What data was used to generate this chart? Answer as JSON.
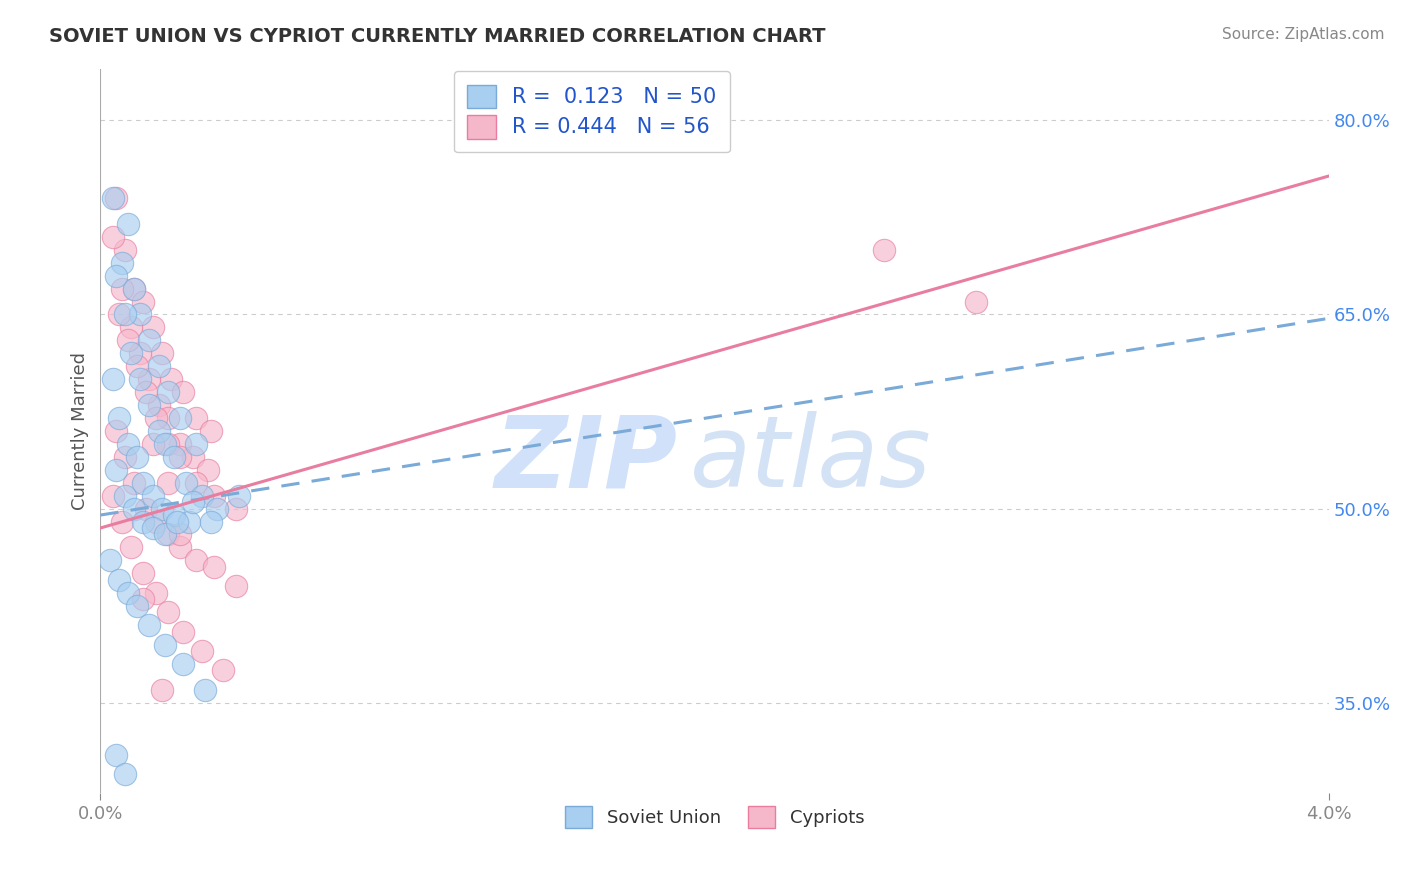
{
  "title": "SOVIET UNION VS CYPRIOT CURRENTLY MARRIED CORRELATION CHART",
  "source": "Source: ZipAtlas.com",
  "ylabel": "Currently Married",
  "xlim": [
    0.0,
    4.0
  ],
  "ylim": [
    28.0,
    84.0
  ],
  "x_ticks": [
    0.0,
    4.0
  ],
  "x_tick_labels": [
    "0.0%",
    "4.0%"
  ],
  "y_ticks_right": [
    35.0,
    50.0,
    65.0,
    80.0
  ],
  "y_tick_labels_right": [
    "35.0%",
    "50.0%",
    "65.0%",
    "80.0%"
  ],
  "grid_color": "#cccccc",
  "background_color": "#ffffff",
  "blue_color": "#A8CEF0",
  "pink_color": "#F5B8CB",
  "blue_edge_color": "#7AAAD8",
  "pink_edge_color": "#E87DA0",
  "blue_line_color": "#7AAAD8",
  "pink_line_color": "#E87DA0",
  "legend_label1": "Soviet Union",
  "legend_label2": "Cypriots",
  "r_blue": 0.123,
  "n_blue": 50,
  "r_pink": 0.444,
  "n_pink": 56,
  "watermark_zip": "ZIP",
  "watermark_atlas": "atlas",
  "blue_intercept": 49.5,
  "blue_slope": 3.8,
  "pink_intercept": 48.5,
  "pink_slope": 6.8,
  "blue_scatter_x": [
    0.04,
    0.07,
    0.09,
    0.11,
    0.13,
    0.16,
    0.19,
    0.22,
    0.26,
    0.31,
    0.05,
    0.08,
    0.1,
    0.13,
    0.16,
    0.19,
    0.21,
    0.24,
    0.28,
    0.33,
    0.04,
    0.06,
    0.09,
    0.12,
    0.14,
    0.17,
    0.2,
    0.24,
    0.29,
    0.38,
    0.05,
    0.08,
    0.11,
    0.14,
    0.17,
    0.21,
    0.25,
    0.3,
    0.36,
    0.45,
    0.03,
    0.06,
    0.09,
    0.12,
    0.16,
    0.21,
    0.27,
    0.34,
    0.05,
    0.08
  ],
  "blue_scatter_y": [
    74.0,
    69.0,
    72.0,
    67.0,
    65.0,
    63.0,
    61.0,
    59.0,
    57.0,
    55.0,
    68.0,
    65.0,
    62.0,
    60.0,
    58.0,
    56.0,
    55.0,
    54.0,
    52.0,
    51.0,
    60.0,
    57.0,
    55.0,
    54.0,
    52.0,
    51.0,
    50.0,
    49.5,
    49.0,
    50.0,
    53.0,
    51.0,
    50.0,
    49.0,
    48.5,
    48.0,
    49.0,
    50.5,
    49.0,
    51.0,
    46.0,
    44.5,
    43.5,
    42.5,
    41.0,
    39.5,
    38.0,
    36.0,
    31.0,
    29.5
  ],
  "pink_scatter_x": [
    0.05,
    0.08,
    0.11,
    0.14,
    0.17,
    0.2,
    0.23,
    0.27,
    0.31,
    0.36,
    0.04,
    0.07,
    0.1,
    0.13,
    0.16,
    0.19,
    0.22,
    0.26,
    0.3,
    0.35,
    0.06,
    0.09,
    0.12,
    0.15,
    0.18,
    0.22,
    0.26,
    0.31,
    0.37,
    0.44,
    0.05,
    0.08,
    0.11,
    0.15,
    0.18,
    0.22,
    0.26,
    0.31,
    0.37,
    0.44,
    0.04,
    0.07,
    0.1,
    0.14,
    0.18,
    0.22,
    0.27,
    0.33,
    0.4,
    0.2,
    2.55,
    2.85,
    0.22,
    0.17,
    0.26,
    0.14
  ],
  "pink_scatter_y": [
    74.0,
    70.0,
    67.0,
    66.0,
    64.0,
    62.0,
    60.0,
    59.0,
    57.0,
    56.0,
    71.0,
    67.0,
    64.0,
    62.0,
    60.0,
    58.0,
    57.0,
    55.0,
    54.0,
    53.0,
    65.0,
    63.0,
    61.0,
    59.0,
    57.0,
    55.0,
    54.0,
    52.0,
    51.0,
    50.0,
    56.0,
    54.0,
    52.0,
    50.0,
    49.0,
    48.0,
    47.0,
    46.0,
    45.5,
    44.0,
    51.0,
    49.0,
    47.0,
    45.0,
    43.5,
    42.0,
    40.5,
    39.0,
    37.5,
    36.0,
    70.0,
    66.0,
    52.0,
    55.0,
    48.0,
    43.0
  ]
}
